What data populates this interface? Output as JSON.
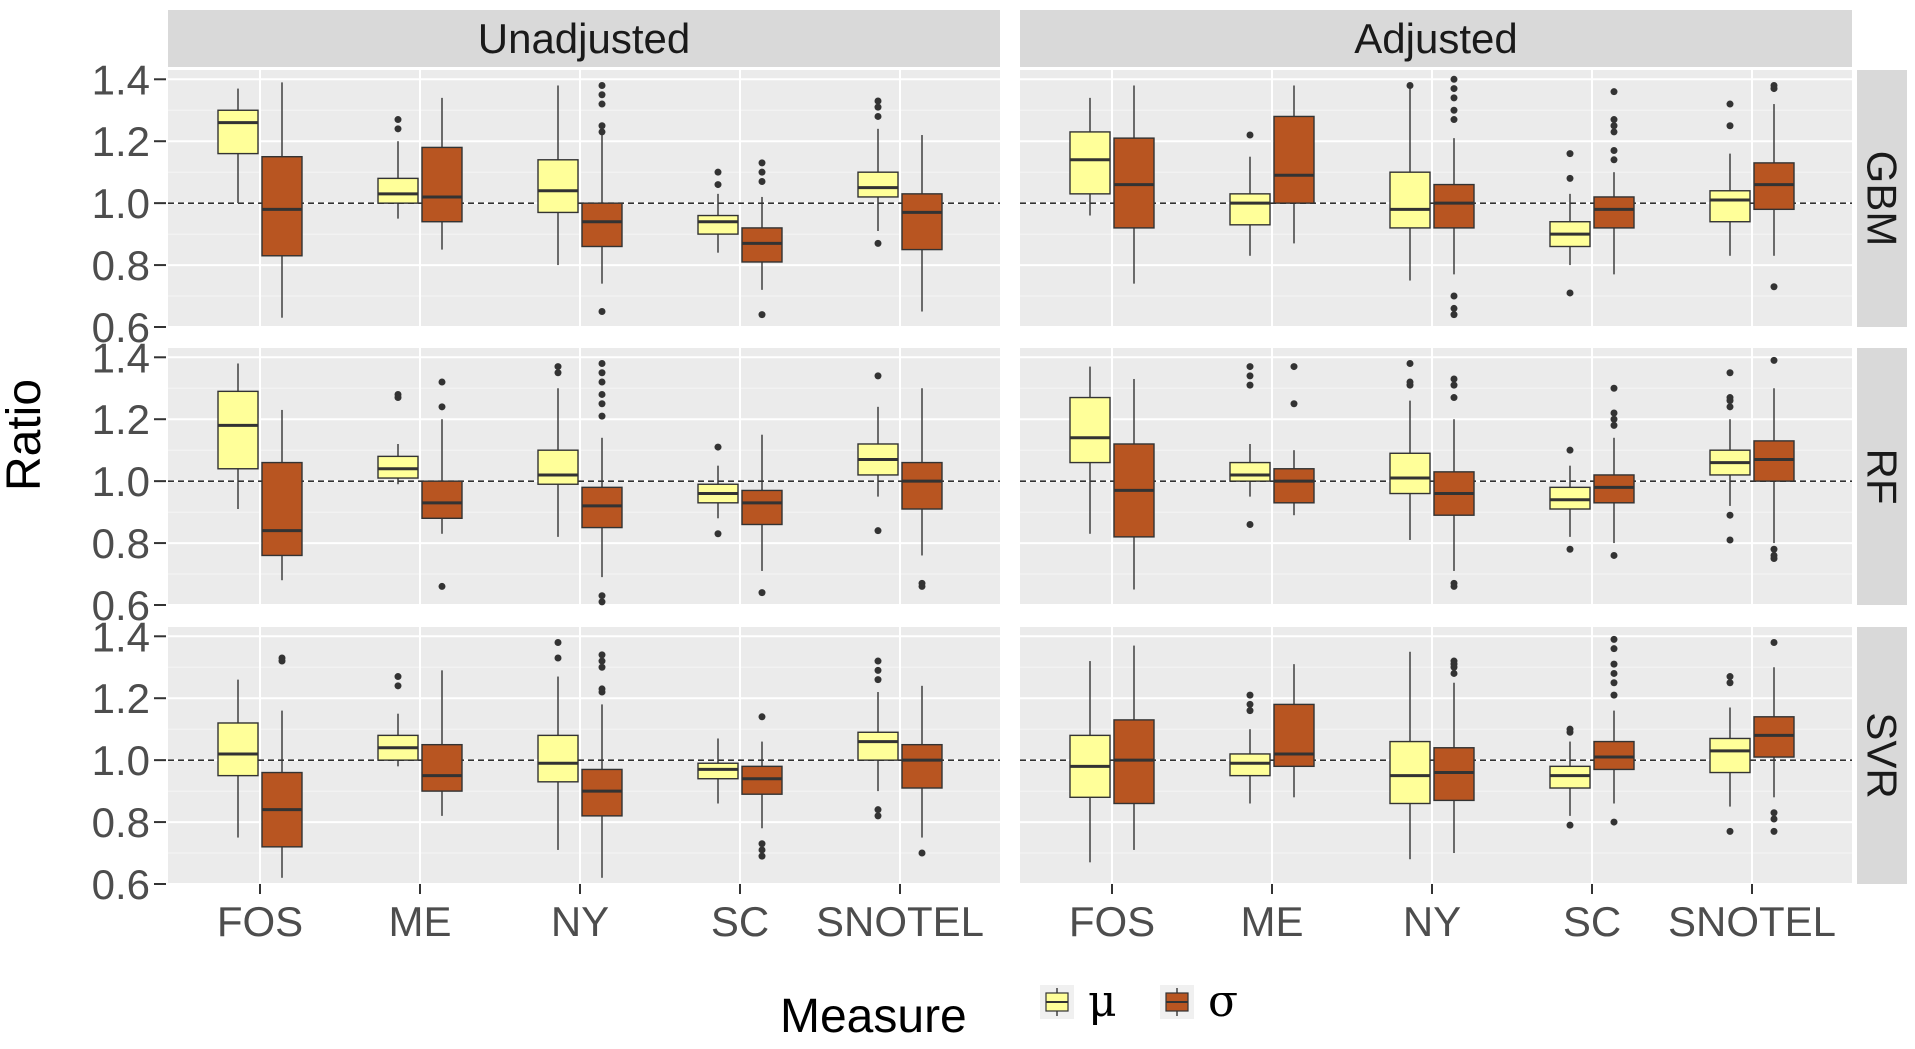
{
  "chart_data": {
    "type": "boxplot",
    "ylabel": "Ratio",
    "xlabel": "",
    "ylim": [
      0.6,
      1.43
    ],
    "yticks": [
      0.6,
      0.8,
      1.0,
      1.2,
      1.4
    ],
    "ytick_labels": [
      "0.6",
      "0.8",
      "1.0",
      "1.2",
      "1.4"
    ],
    "reference_line": 1.0,
    "categories": [
      "FOS",
      "ME",
      "NY",
      "SC",
      "SNOTEL"
    ],
    "columns": [
      "Unadjusted",
      "Adjusted"
    ],
    "rows": [
      "GBM",
      "RF",
      "SVR"
    ],
    "legend": {
      "title": "Measure",
      "placement": "bottom",
      "entries": [
        {
          "key": "mu",
          "label": "μ",
          "color": "#FFFF99"
        },
        {
          "key": "sigma",
          "label": "σ",
          "color": "#B85521"
        }
      ]
    },
    "panels": {
      "GBM": {
        "Unadjusted": {
          "FOS": {
            "mu": {
              "lw": 1.0,
              "q1": 1.16,
              "med": 1.26,
              "q3": 1.3,
              "uw": 1.37,
              "out": []
            },
            "sigma": {
              "lw": 0.63,
              "q1": 0.83,
              "med": 0.98,
              "q3": 1.15,
              "uw": 1.39,
              "out": []
            }
          },
          "ME": {
            "mu": {
              "lw": 0.95,
              "q1": 1.0,
              "med": 1.03,
              "q3": 1.08,
              "uw": 1.2,
              "out": [
                1.27,
                1.24
              ]
            },
            "sigma": {
              "lw": 0.85,
              "q1": 0.94,
              "med": 1.02,
              "q3": 1.18,
              "uw": 1.34,
              "out": []
            }
          },
          "NY": {
            "mu": {
              "lw": 0.8,
              "q1": 0.97,
              "med": 1.04,
              "q3": 1.14,
              "uw": 1.38,
              "out": []
            },
            "sigma": {
              "lw": 0.74,
              "q1": 0.86,
              "med": 0.94,
              "q3": 1.0,
              "uw": 1.22,
              "out": [
                1.38,
                1.35,
                1.32,
                1.25,
                1.23,
                0.65
              ]
            }
          },
          "SC": {
            "mu": {
              "lw": 0.84,
              "q1": 0.9,
              "med": 0.94,
              "q3": 0.96,
              "uw": 1.03,
              "out": [
                1.1,
                1.06
              ]
            },
            "sigma": {
              "lw": 0.72,
              "q1": 0.81,
              "med": 0.87,
              "q3": 0.92,
              "uw": 1.02,
              "out": [
                1.13,
                1.1,
                1.07,
                0.64
              ]
            }
          },
          "SNOTEL": {
            "mu": {
              "lw": 0.91,
              "q1": 1.02,
              "med": 1.05,
              "q3": 1.1,
              "uw": 1.24,
              "out": [
                1.33,
                1.31,
                1.28,
                0.87
              ]
            },
            "sigma": {
              "lw": 0.65,
              "q1": 0.85,
              "med": 0.97,
              "q3": 1.03,
              "uw": 1.22,
              "out": []
            }
          }
        },
        "Adjusted": {
          "FOS": {
            "mu": {
              "lw": 0.96,
              "q1": 1.03,
              "med": 1.14,
              "q3": 1.23,
              "uw": 1.34,
              "out": []
            },
            "sigma": {
              "lw": 0.74,
              "q1": 0.92,
              "med": 1.06,
              "q3": 1.21,
              "uw": 1.38,
              "out": []
            }
          },
          "ME": {
            "mu": {
              "lw": 0.83,
              "q1": 0.93,
              "med": 1.0,
              "q3": 1.03,
              "uw": 1.15,
              "out": [
                1.22
              ]
            },
            "sigma": {
              "lw": 0.87,
              "q1": 1.0,
              "med": 1.09,
              "q3": 1.28,
              "uw": 1.38,
              "out": []
            }
          },
          "NY": {
            "mu": {
              "lw": 0.75,
              "q1": 0.92,
              "med": 0.98,
              "q3": 1.1,
              "uw": 1.37,
              "out": [
                1.38
              ]
            },
            "sigma": {
              "lw": 0.77,
              "q1": 0.92,
              "med": 1.0,
              "q3": 1.06,
              "uw": 1.21,
              "out": [
                1.4,
                1.37,
                1.34,
                1.3,
                1.27,
                0.7,
                0.66,
                0.64
              ]
            }
          },
          "SC": {
            "mu": {
              "lw": 0.8,
              "q1": 0.86,
              "med": 0.9,
              "q3": 0.94,
              "uw": 1.03,
              "out": [
                1.16,
                1.08,
                0.71
              ]
            },
            "sigma": {
              "lw": 0.77,
              "q1": 0.92,
              "med": 0.98,
              "q3": 1.02,
              "uw": 1.1,
              "out": [
                1.36,
                1.27,
                1.25,
                1.23,
                1.17,
                1.14
              ]
            }
          },
          "SNOTEL": {
            "mu": {
              "lw": 0.83,
              "q1": 0.94,
              "med": 1.01,
              "q3": 1.04,
              "uw": 1.16,
              "out": [
                1.32,
                1.25
              ]
            },
            "sigma": {
              "lw": 0.83,
              "q1": 0.98,
              "med": 1.06,
              "q3": 1.13,
              "uw": 1.32,
              "out": [
                1.38,
                1.37,
                0.73
              ]
            }
          }
        }
      },
      "RF": {
        "Unadjusted": {
          "FOS": {
            "mu": {
              "lw": 0.91,
              "q1": 1.04,
              "med": 1.18,
              "q3": 1.29,
              "uw": 1.38,
              "out": []
            },
            "sigma": {
              "lw": 0.68,
              "q1": 0.76,
              "med": 0.84,
              "q3": 1.06,
              "uw": 1.23,
              "out": []
            }
          },
          "ME": {
            "mu": {
              "lw": 0.99,
              "q1": 1.01,
              "med": 1.04,
              "q3": 1.08,
              "uw": 1.12,
              "out": [
                1.28,
                1.27
              ]
            },
            "sigma": {
              "lw": 0.83,
              "q1": 0.88,
              "med": 0.93,
              "q3": 1.0,
              "uw": 1.2,
              "out": [
                1.32,
                1.24,
                0.66
              ]
            }
          },
          "NY": {
            "mu": {
              "lw": 0.82,
              "q1": 0.99,
              "med": 1.02,
              "q3": 1.1,
              "uw": 1.3,
              "out": [
                1.37,
                1.35
              ]
            },
            "sigma": {
              "lw": 0.69,
              "q1": 0.85,
              "med": 0.92,
              "q3": 0.98,
              "uw": 1.14,
              "out": [
                1.38,
                1.35,
                1.32,
                1.28,
                1.25,
                1.21,
                0.63,
                0.61
              ]
            }
          },
          "SC": {
            "mu": {
              "lw": 0.88,
              "q1": 0.93,
              "med": 0.96,
              "q3": 0.99,
              "uw": 1.05,
              "out": [
                1.11,
                0.83
              ]
            },
            "sigma": {
              "lw": 0.71,
              "q1": 0.86,
              "med": 0.93,
              "q3": 0.97,
              "uw": 1.15,
              "out": [
                0.64
              ]
            }
          },
          "SNOTEL": {
            "mu": {
              "lw": 0.95,
              "q1": 1.02,
              "med": 1.07,
              "q3": 1.12,
              "uw": 1.24,
              "out": [
                1.34,
                0.84
              ]
            },
            "sigma": {
              "lw": 0.76,
              "q1": 0.91,
              "med": 1.0,
              "q3": 1.06,
              "uw": 1.3,
              "out": [
                0.67,
                0.66
              ]
            }
          }
        },
        "Adjusted": {
          "FOS": {
            "mu": {
              "lw": 0.83,
              "q1": 1.06,
              "med": 1.14,
              "q3": 1.27,
              "uw": 1.37,
              "out": []
            },
            "sigma": {
              "lw": 0.65,
              "q1": 0.82,
              "med": 0.97,
              "q3": 1.12,
              "uw": 1.33,
              "out": []
            }
          },
          "ME": {
            "mu": {
              "lw": 0.95,
              "q1": 1.0,
              "med": 1.02,
              "q3": 1.06,
              "uw": 1.12,
              "out": [
                1.37,
                1.34,
                1.31,
                0.86
              ]
            },
            "sigma": {
              "lw": 0.89,
              "q1": 0.93,
              "med": 1.0,
              "q3": 1.04,
              "uw": 1.1,
              "out": [
                1.37,
                1.25
              ]
            }
          },
          "NY": {
            "mu": {
              "lw": 0.81,
              "q1": 0.96,
              "med": 1.01,
              "q3": 1.09,
              "uw": 1.26,
              "out": [
                1.38,
                1.32,
                1.31
              ]
            },
            "sigma": {
              "lw": 0.71,
              "q1": 0.89,
              "med": 0.96,
              "q3": 1.03,
              "uw": 1.2,
              "out": [
                1.33,
                1.31,
                1.27,
                0.67,
                0.66
              ]
            }
          },
          "SC": {
            "mu": {
              "lw": 0.82,
              "q1": 0.91,
              "med": 0.94,
              "q3": 0.98,
              "uw": 1.05,
              "out": [
                1.1,
                0.78
              ]
            },
            "sigma": {
              "lw": 0.8,
              "q1": 0.93,
              "med": 0.98,
              "q3": 1.02,
              "uw": 1.14,
              "out": [
                1.3,
                1.22,
                1.2,
                1.18,
                0.76
              ]
            }
          },
          "SNOTEL": {
            "mu": {
              "lw": 0.92,
              "q1": 1.02,
              "med": 1.06,
              "q3": 1.1,
              "uw": 1.2,
              "out": [
                1.35,
                1.27,
                1.26,
                1.24,
                0.89,
                0.81
              ]
            },
            "sigma": {
              "lw": 0.8,
              "q1": 1.0,
              "med": 1.07,
              "q3": 1.13,
              "uw": 1.3,
              "out": [
                1.39,
                0.78,
                0.76,
                0.75
              ]
            }
          }
        }
      },
      "SVR": {
        "Unadjusted": {
          "FOS": {
            "mu": {
              "lw": 0.75,
              "q1": 0.95,
              "med": 1.02,
              "q3": 1.12,
              "uw": 1.26,
              "out": []
            },
            "sigma": {
              "lw": 0.62,
              "q1": 0.72,
              "med": 0.84,
              "q3": 0.96,
              "uw": 1.16,
              "out": [
                1.33,
                1.32
              ]
            }
          },
          "ME": {
            "mu": {
              "lw": 0.98,
              "q1": 1.0,
              "med": 1.04,
              "q3": 1.08,
              "uw": 1.15,
              "out": [
                1.27,
                1.24
              ]
            },
            "sigma": {
              "lw": 0.82,
              "q1": 0.9,
              "med": 0.95,
              "q3": 1.05,
              "uw": 1.29,
              "out": []
            }
          },
          "NY": {
            "mu": {
              "lw": 0.71,
              "q1": 0.93,
              "med": 0.99,
              "q3": 1.08,
              "uw": 1.27,
              "out": [
                1.38,
                1.33
              ]
            },
            "sigma": {
              "lw": 0.62,
              "q1": 0.82,
              "med": 0.9,
              "q3": 0.97,
              "uw": 1.18,
              "out": [
                1.34,
                1.32,
                1.3,
                1.23,
                1.22
              ]
            }
          },
          "SC": {
            "mu": {
              "lw": 0.86,
              "q1": 0.94,
              "med": 0.97,
              "q3": 0.99,
              "uw": 1.07,
              "out": []
            },
            "sigma": {
              "lw": 0.78,
              "q1": 0.89,
              "med": 0.94,
              "q3": 0.98,
              "uw": 1.06,
              "out": [
                1.14,
                0.73,
                0.71,
                0.69
              ]
            }
          },
          "SNOTEL": {
            "mu": {
              "lw": 0.9,
              "q1": 1.0,
              "med": 1.06,
              "q3": 1.09,
              "uw": 1.22,
              "out": [
                1.32,
                1.29,
                1.26,
                0.84,
                0.82
              ]
            },
            "sigma": {
              "lw": 0.75,
              "q1": 0.91,
              "med": 1.0,
              "q3": 1.05,
              "uw": 1.24,
              "out": [
                0.7
              ]
            }
          }
        },
        "Adjusted": {
          "FOS": {
            "mu": {
              "lw": 0.67,
              "q1": 0.88,
              "med": 0.98,
              "q3": 1.08,
              "uw": 1.32,
              "out": []
            },
            "sigma": {
              "lw": 0.71,
              "q1": 0.86,
              "med": 1.0,
              "q3": 1.13,
              "uw": 1.37,
              "out": []
            }
          },
          "ME": {
            "mu": {
              "lw": 0.86,
              "q1": 0.95,
              "med": 0.99,
              "q3": 1.02,
              "uw": 1.1,
              "out": [
                1.21,
                1.18,
                1.16
              ]
            },
            "sigma": {
              "lw": 0.88,
              "q1": 0.98,
              "med": 1.02,
              "q3": 1.18,
              "uw": 1.31,
              "out": []
            }
          },
          "NY": {
            "mu": {
              "lw": 0.68,
              "q1": 0.86,
              "med": 0.95,
              "q3": 1.06,
              "uw": 1.35,
              "out": []
            },
            "sigma": {
              "lw": 0.7,
              "q1": 0.87,
              "med": 0.96,
              "q3": 1.04,
              "uw": 1.25,
              "out": [
                1.32,
                1.31,
                1.3,
                1.28
              ]
            }
          },
          "SC": {
            "mu": {
              "lw": 0.82,
              "q1": 0.91,
              "med": 0.95,
              "q3": 0.98,
              "uw": 1.06,
              "out": [
                1.1,
                1.09,
                0.79
              ]
            },
            "sigma": {
              "lw": 0.86,
              "q1": 0.97,
              "med": 1.01,
              "q3": 1.06,
              "uw": 1.16,
              "out": [
                1.39,
                1.36,
                1.31,
                1.28,
                1.25,
                1.21,
                0.8
              ]
            }
          },
          "SNOTEL": {
            "mu": {
              "lw": 0.85,
              "q1": 0.96,
              "med": 1.03,
              "q3": 1.07,
              "uw": 1.17,
              "out": [
                1.27,
                1.25,
                0.77
              ]
            },
            "sigma": {
              "lw": 0.88,
              "q1": 1.01,
              "med": 1.08,
              "q3": 1.14,
              "uw": 1.3,
              "out": [
                1.38,
                0.83,
                0.81,
                0.77
              ]
            }
          }
        }
      }
    }
  }
}
